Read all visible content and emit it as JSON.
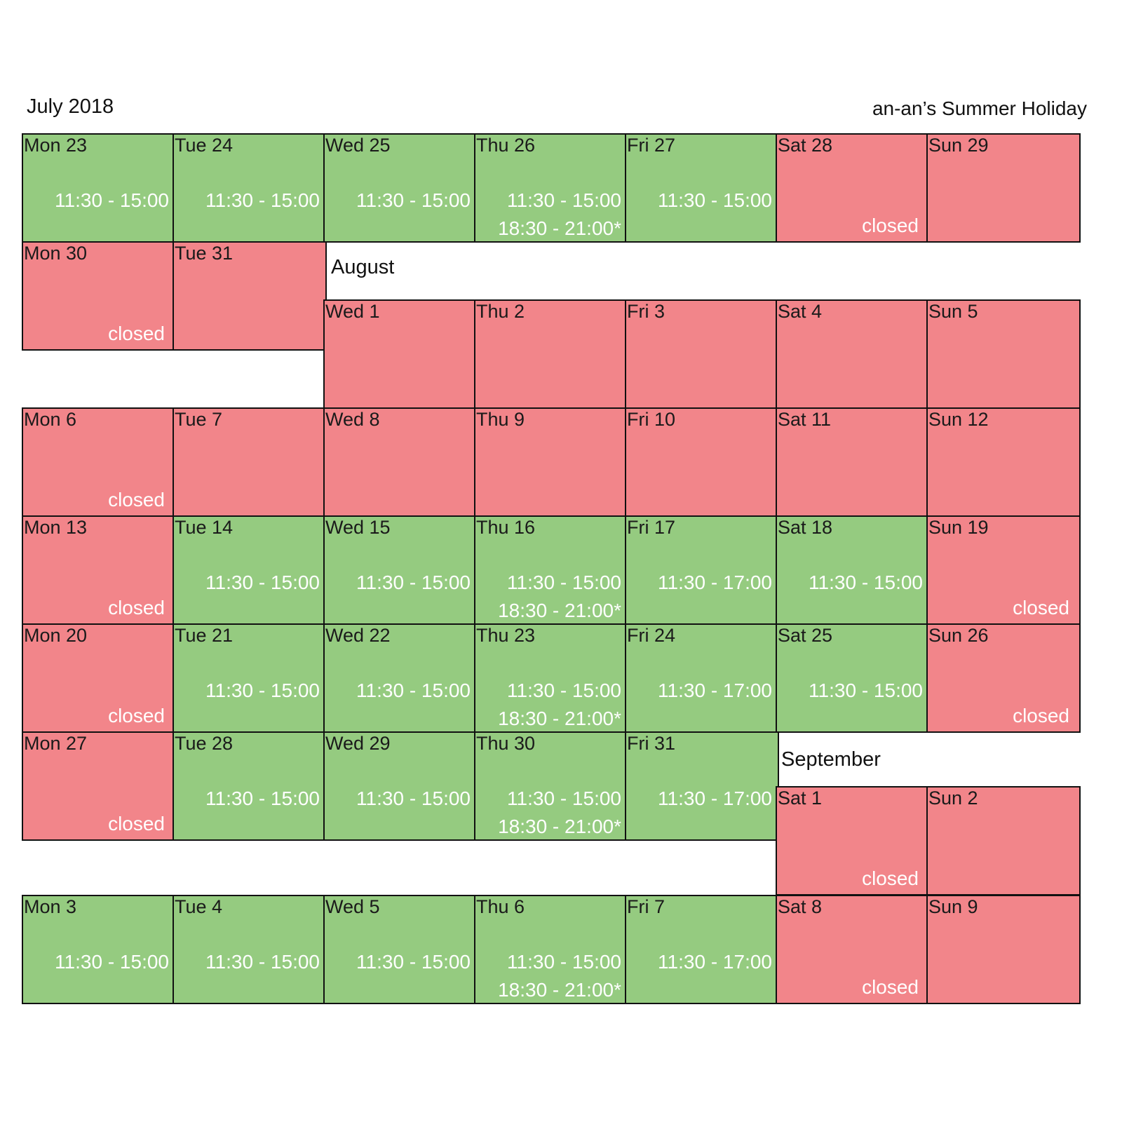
{
  "header": {
    "month_title": "July 2018",
    "calendar_title": "an-an’s Summer Holiday"
  },
  "month_labels": {
    "august": "August",
    "september": "September"
  },
  "colors": {
    "open": "#95cb80",
    "closed": "#f2858a",
    "border": "#111111",
    "hours_text": "#ffffff"
  },
  "days": [
    {
      "label": "Mon 23",
      "status": "open",
      "hours": [
        "11:30 - 15:00"
      ],
      "note": ""
    },
    {
      "label": "Tue 24",
      "status": "open",
      "hours": [
        "11:30 - 15:00"
      ],
      "note": ""
    },
    {
      "label": "Wed 25",
      "status": "open",
      "hours": [
        "11:30 - 15:00"
      ],
      "note": ""
    },
    {
      "label": "Thu 26",
      "status": "open",
      "hours": [
        "11:30 - 15:00",
        "18:30 - 21:00*"
      ],
      "note": ""
    },
    {
      "label": "Fri 27",
      "status": "open",
      "hours": [
        "11:30 - 15:00"
      ],
      "note": ""
    },
    {
      "label": "Sat 28",
      "status": "closed",
      "hours": [],
      "note": "closed"
    },
    {
      "label": "Sun 29",
      "status": "closed",
      "hours": [],
      "note": ""
    },
    {
      "label": "Mon 30",
      "status": "closed",
      "hours": [],
      "note": "closed"
    },
    {
      "label": "Tue 31",
      "status": "closed",
      "hours": [],
      "note": ""
    },
    {
      "label": "Wed 1",
      "status": "closed",
      "hours": [],
      "note": ""
    },
    {
      "label": "Thu 2",
      "status": "closed",
      "hours": [],
      "note": ""
    },
    {
      "label": "Fri 3",
      "status": "closed",
      "hours": [],
      "note": ""
    },
    {
      "label": "Sat 4",
      "status": "closed",
      "hours": [],
      "note": ""
    },
    {
      "label": "Sun 5",
      "status": "closed",
      "hours": [],
      "note": ""
    },
    {
      "label": "Mon 6",
      "status": "closed",
      "hours": [],
      "note": "closed"
    },
    {
      "label": "Tue 7",
      "status": "closed",
      "hours": [],
      "note": ""
    },
    {
      "label": "Wed 8",
      "status": "closed",
      "hours": [],
      "note": ""
    },
    {
      "label": "Thu 9",
      "status": "closed",
      "hours": [],
      "note": ""
    },
    {
      "label": "Fri 10",
      "status": "closed",
      "hours": [],
      "note": ""
    },
    {
      "label": "Sat 11",
      "status": "closed",
      "hours": [],
      "note": ""
    },
    {
      "label": "Sun 12",
      "status": "closed",
      "hours": [],
      "note": ""
    },
    {
      "label": "Mon 13",
      "status": "closed",
      "hours": [],
      "note": "closed"
    },
    {
      "label": "Tue 14",
      "status": "open",
      "hours": [
        "11:30 - 15:00"
      ],
      "note": ""
    },
    {
      "label": "Wed 15",
      "status": "open",
      "hours": [
        "11:30 - 15:00"
      ],
      "note": ""
    },
    {
      "label": "Thu 16",
      "status": "open",
      "hours": [
        "11:30 - 15:00",
        "18:30 - 21:00*"
      ],
      "note": ""
    },
    {
      "label": "Fri 17",
      "status": "open",
      "hours": [
        "11:30 - 17:00"
      ],
      "note": ""
    },
    {
      "label": "Sat 18",
      "status": "open",
      "hours": [
        "11:30 - 15:00"
      ],
      "note": ""
    },
    {
      "label": "Sun 19",
      "status": "closed",
      "hours": [],
      "note": "closed"
    },
    {
      "label": "Mon 20",
      "status": "closed",
      "hours": [],
      "note": "closed"
    },
    {
      "label": "Tue 21",
      "status": "open",
      "hours": [
        "11:30 - 15:00"
      ],
      "note": ""
    },
    {
      "label": "Wed 22",
      "status": "open",
      "hours": [
        "11:30 - 15:00"
      ],
      "note": ""
    },
    {
      "label": "Thu 23",
      "status": "open",
      "hours": [
        "11:30 - 15:00",
        "18:30 - 21:00*"
      ],
      "note": ""
    },
    {
      "label": "Fri 24",
      "status": "open",
      "hours": [
        "11:30 - 17:00"
      ],
      "note": ""
    },
    {
      "label": "Sat 25",
      "status": "open",
      "hours": [
        "11:30 - 15:00"
      ],
      "note": ""
    },
    {
      "label": "Sun 26",
      "status": "closed",
      "hours": [],
      "note": "closed"
    },
    {
      "label": "Mon 27",
      "status": "closed",
      "hours": [],
      "note": "closed"
    },
    {
      "label": "Tue 28",
      "status": "open",
      "hours": [
        "11:30 - 15:00"
      ],
      "note": ""
    },
    {
      "label": "Wed 29",
      "status": "open",
      "hours": [
        "11:30 - 15:00"
      ],
      "note": ""
    },
    {
      "label": "Thu 30",
      "status": "open",
      "hours": [
        "11:30 - 15:00",
        "18:30 - 21:00*"
      ],
      "note": ""
    },
    {
      "label": "Fri 31",
      "status": "open",
      "hours": [
        "11:30 - 17:00"
      ],
      "note": ""
    },
    {
      "label": "Sat 1",
      "status": "closed",
      "hours": [],
      "note": "closed"
    },
    {
      "label": "Sun 2",
      "status": "closed",
      "hours": [],
      "note": ""
    },
    {
      "label": "Mon 3",
      "status": "open",
      "hours": [
        "11:30 - 15:00"
      ],
      "note": ""
    },
    {
      "label": "Tue 4",
      "status": "open",
      "hours": [
        "11:30 - 15:00"
      ],
      "note": ""
    },
    {
      "label": "Wed 5",
      "status": "open",
      "hours": [
        "11:30 - 15:00"
      ],
      "note": ""
    },
    {
      "label": "Thu 6",
      "status": "open",
      "hours": [
        "11:30 - 15:00",
        "18:30 - 21:00*"
      ],
      "note": ""
    },
    {
      "label": "Fri 7",
      "status": "open",
      "hours": [
        "11:30 - 17:00"
      ],
      "note": ""
    },
    {
      "label": "Sat 8",
      "status": "closed",
      "hours": [],
      "note": "closed"
    },
    {
      "label": "Sun 9",
      "status": "closed",
      "hours": [],
      "note": ""
    }
  ]
}
